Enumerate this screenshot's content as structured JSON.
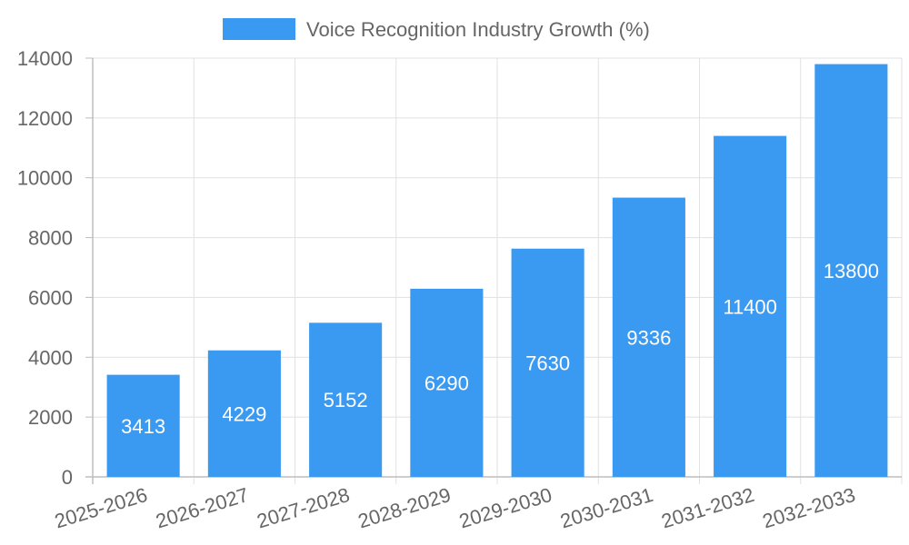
{
  "chart_data": {
    "type": "bar",
    "categories": [
      "2025-2026",
      "2026-2027",
      "2027-2028",
      "2028-2029",
      "2029-2030",
      "2030-2031",
      "2031-2032",
      "2032-2033"
    ],
    "series": [
      {
        "name": "Voice Recognition Industry Growth (%)",
        "values": [
          3413,
          4229,
          5152,
          6290,
          7630,
          9336,
          11400,
          13800
        ],
        "color": "#3a99f0"
      }
    ],
    "ylim": [
      0,
      14000
    ],
    "yticks": [
      "0",
      "2000",
      "4000",
      "6000",
      "8000",
      "10000",
      "12000",
      "14000"
    ],
    "grid": true,
    "legend_position": "top",
    "data_labels": "inside-center",
    "xtick_rotation": "angled"
  }
}
